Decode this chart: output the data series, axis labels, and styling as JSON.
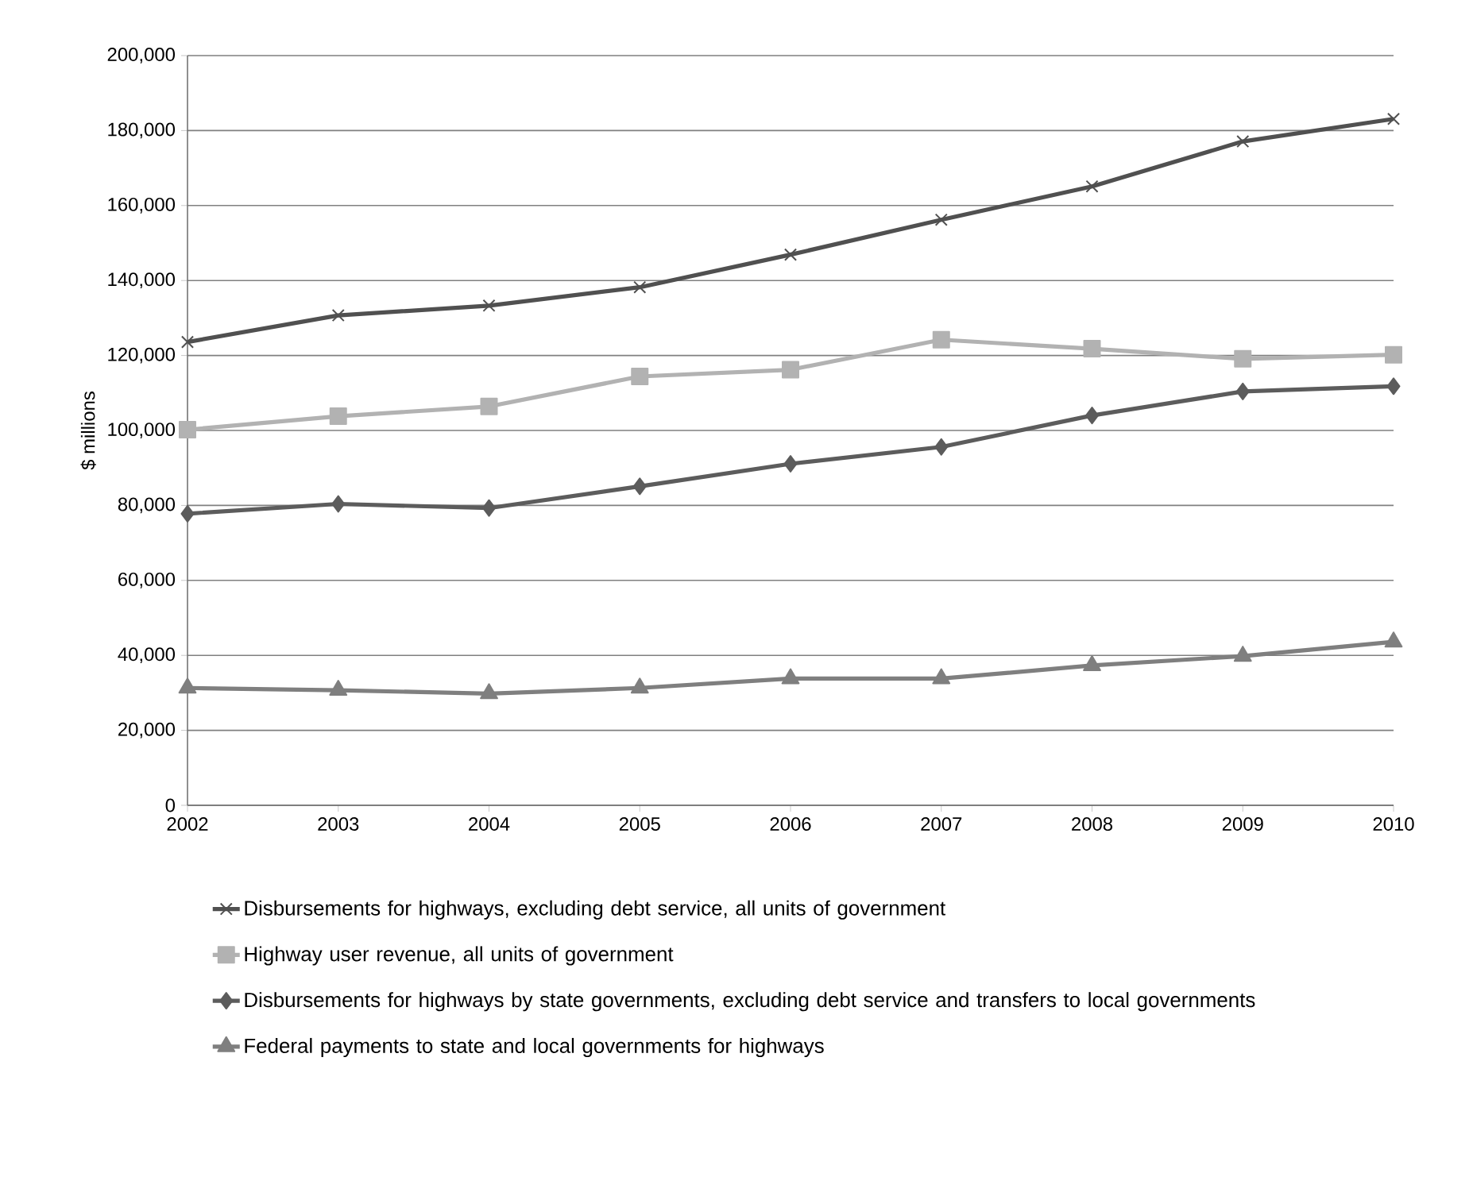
{
  "chart_data": {
    "type": "line",
    "ylabel": "$ millions",
    "x": [
      2002,
      2003,
      2004,
      2005,
      2006,
      2007,
      2008,
      2009,
      2010
    ],
    "xlim": [
      2002,
      2010
    ],
    "xticks": [
      2002,
      2003,
      2004,
      2005,
      2006,
      2007,
      2008,
      2009,
      2010
    ],
    "ylim": [
      0,
      200000
    ],
    "yticks": [
      {
        "value": 0,
        "label": "0"
      },
      {
        "value": 20000,
        "label": "20,000"
      },
      {
        "value": 40000,
        "label": "40,000"
      },
      {
        "value": 60000,
        "label": "60,000"
      },
      {
        "value": 80000,
        "label": "80,000"
      },
      {
        "value": 100000,
        "label": "100,000"
      },
      {
        "value": 120000,
        "label": "120,000"
      },
      {
        "value": 140000,
        "label": "140,000"
      },
      {
        "value": 160000,
        "label": "160,000"
      },
      {
        "value": 180000,
        "label": "180,000"
      },
      {
        "value": 200000,
        "label": "200,000"
      }
    ],
    "grid": "y",
    "legend": "bottom",
    "line_style": "solid",
    "series": [
      {
        "name": "Disbursements for highways,  excluding debt service, all units of government",
        "color": "#505050",
        "marker": "cross",
        "values": [
          123600,
          130700,
          133300,
          138200,
          146900,
          156200,
          165100,
          177100,
          183100
        ]
      },
      {
        "name": "Highway user revenue, all units of government",
        "color": "#b2b2b2",
        "marker": "square",
        "values": [
          100200,
          103800,
          106400,
          114400,
          116200,
          124200,
          121800,
          119100,
          120200
        ]
      },
      {
        "name": "Disbursements for highways by state governments, excluding debt service and transfers to local governments",
        "color": "#5c5c5c",
        "marker": "diamond",
        "values": [
          77800,
          80400,
          79300,
          85100,
          91100,
          95600,
          104000,
          110400,
          111800
        ]
      },
      {
        "name": "Federal payments to state  and local governments for highways",
        "color": "#7f7f7f",
        "marker": "triangle",
        "values": [
          31300,
          30700,
          29800,
          31300,
          33800,
          33800,
          37300,
          39800,
          43600
        ]
      }
    ]
  }
}
